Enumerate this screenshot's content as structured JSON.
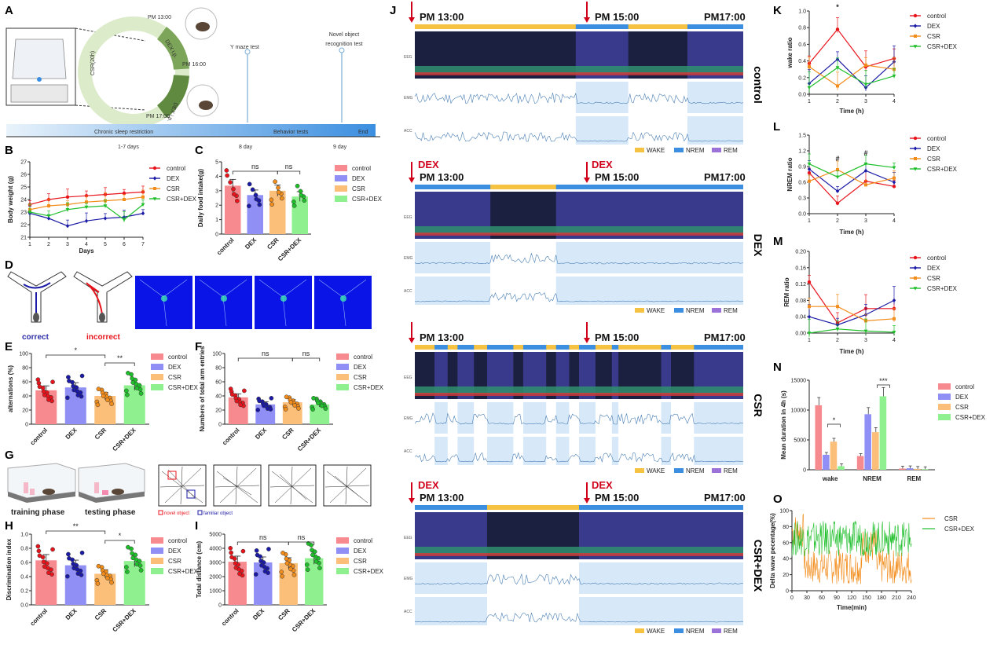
{
  "panel_labels": {
    "A": "A",
    "B": "B",
    "C": "C",
    "D": "D",
    "E": "E",
    "F": "F",
    "G": "G",
    "H": "H",
    "I": "I",
    "J": "J",
    "K": "K",
    "L": "L",
    "M": "M",
    "N": "N",
    "O": "O"
  },
  "colors": {
    "control": "#e8141c",
    "dex": "#1a1aa6",
    "csr": "#f28c1a",
    "csrdex": "#1fbf2b",
    "bar_control": "#f78a8e",
    "bar_dex": "#8f8ff5",
    "bar_csr": "#fbbf7a",
    "bar_csrdex": "#8ef08e",
    "wake": "#f5c242",
    "nrem": "#3b8ee0",
    "rem": "#9a72d8"
  },
  "panelA": {
    "csr_label": "CSR(20h)",
    "times": {
      "t1": "PM 13:00",
      "t2": "PM 16:00",
      "t3": "PM 17:00"
    },
    "dex1": "DEX i.p.",
    "dex2": "DEX i.p.",
    "y_maze": "Y maze test",
    "nor": "Novel object\nrecognition  test",
    "timeline": {
      "csr": "Chronic sleep restriction",
      "behavior": "Behavior tests",
      "end": "End",
      "d1": "1-7 days",
      "d2": "8 day",
      "d3": "9  day"
    }
  },
  "legend4": [
    "control",
    "DEX",
    "CSR",
    "CSR+DEX"
  ],
  "groups": [
    "control",
    "DEX",
    "CSR",
    "CSR+DEX"
  ],
  "panelD": {
    "correct": "correct",
    "incorrect": "incorrect"
  },
  "panelG": {
    "training": "training   phase",
    "testing": "testing  phase",
    "novel": "novel object",
    "familiar": "familiar object"
  },
  "panelJ": {
    "t1": "PM 13:00",
    "t2": "PM 15:00",
    "t3": "PM17:00",
    "dex": "DEX",
    "groups": [
      "control",
      "DEX",
      "CSR",
      "CSR+DEX"
    ],
    "legend": [
      "WAKE",
      "NREM",
      "REM"
    ],
    "channels": {
      "eeg": "EEG",
      "emg": "EMG",
      "acc": "ACC"
    }
  },
  "chart_data": [
    {
      "panel": "B",
      "type": "line",
      "xlabel": "Days",
      "ylabel": "Body weight (g)",
      "x": [
        1,
        2,
        3,
        4,
        5,
        6,
        7
      ],
      "ylim": [
        21,
        27
      ],
      "yticks": [
        21,
        22,
        23,
        24,
        25,
        26,
        27
      ],
      "series": [
        {
          "name": "control",
          "values": [
            23.6,
            24.0,
            24.2,
            24.3,
            24.4,
            24.5,
            24.6
          ]
        },
        {
          "name": "DEX",
          "values": [
            22.9,
            22.5,
            21.9,
            22.3,
            22.5,
            22.6,
            22.9
          ]
        },
        {
          "name": "CSR",
          "values": [
            23.2,
            23.5,
            23.6,
            23.8,
            23.9,
            24.0,
            24.2
          ]
        },
        {
          "name": "CSR+DEX",
          "values": [
            23.0,
            22.7,
            23.2,
            23.4,
            23.5,
            22.4,
            23.6
          ]
        }
      ]
    },
    {
      "panel": "C",
      "type": "bar",
      "ylabel": "Daily food intake(g)",
      "categories": [
        "control",
        "DEX",
        "CSR",
        "CSR+DEX"
      ],
      "values": [
        3.35,
        2.7,
        3.0,
        2.6
      ],
      "ylim": [
        0,
        5
      ],
      "yticks": [
        0,
        1,
        2,
        3,
        4,
        5
      ],
      "sig": [
        "ns",
        "ns"
      ]
    },
    {
      "panel": "E",
      "type": "bar",
      "ylabel": "alternations (%)",
      "categories": [
        "control",
        "DEX",
        "CSR",
        "CSR+DEX"
      ],
      "values": [
        48,
        52,
        40,
        55
      ],
      "ylim": [
        0,
        100
      ],
      "yticks": [
        0,
        20,
        40,
        60,
        80,
        100
      ],
      "sig": [
        "*",
        "**"
      ]
    },
    {
      "panel": "F",
      "type": "bar",
      "ylabel": "Numbers of total arm entries",
      "categories": [
        "control",
        "DEX",
        "CSR",
        "CSR+DEX"
      ],
      "values": [
        38,
        28,
        31,
        28
      ],
      "ylim": [
        0,
        100
      ],
      "yticks": [
        0,
        20,
        40,
        60,
        80,
        100
      ],
      "sig": [
        "ns",
        "ns"
      ]
    },
    {
      "panel": "H",
      "type": "bar",
      "ylabel": "Discrimination index",
      "categories": [
        "control",
        "DEX",
        "CSR",
        "CSR+DEX"
      ],
      "values": [
        0.63,
        0.56,
        0.44,
        0.62
      ],
      "ylim": [
        0,
        1.0
      ],
      "yticks": [
        "0.0",
        "0.2",
        "0.4",
        "0.6",
        "0.8",
        "1.0"
      ],
      "sig": [
        "**",
        "*"
      ]
    },
    {
      "panel": "I",
      "type": "bar",
      "ylabel": "Total distance (cm)",
      "categories": [
        "control",
        "DEX",
        "CSR",
        "CSR+DEX"
      ],
      "values": [
        3050,
        3000,
        2950,
        3300
      ],
      "ylim": [
        0,
        5000
      ],
      "yticks": [
        0,
        1000,
        2000,
        3000,
        4000,
        5000
      ],
      "sig": [
        "ns",
        "ns"
      ]
    },
    {
      "panel": "K",
      "type": "line",
      "xlabel": "Time (h)",
      "ylabel": "wake ratio",
      "x": [
        1,
        2,
        3,
        4
      ],
      "ylim": [
        0,
        1.0
      ],
      "yticks": [
        "0.0",
        "0.2",
        "0.4",
        "0.6",
        "0.8",
        "1.0"
      ],
      "sig": [
        "*"
      ],
      "series": [
        {
          "name": "control",
          "values": [
            0.37,
            0.78,
            0.33,
            0.43
          ]
        },
        {
          "name": "DEX",
          "values": [
            0.13,
            0.42,
            0.08,
            0.39
          ]
        },
        {
          "name": "CSR",
          "values": [
            0.33,
            0.1,
            0.35,
            0.3
          ]
        },
        {
          "name": "CSR+DEX",
          "values": [
            0.08,
            0.32,
            0.12,
            0.22
          ]
        }
      ]
    },
    {
      "panel": "L",
      "type": "line",
      "xlabel": "Time (h)",
      "ylabel": "NREM ratio",
      "x": [
        1,
        2,
        3,
        4
      ],
      "ylim": [
        0,
        1.5
      ],
      "yticks": [
        "0.0",
        "0.3",
        "0.6",
        "0.9",
        "1.2",
        "1.5"
      ],
      "sig": [
        "#",
        "#"
      ],
      "series": [
        {
          "name": "control",
          "values": [
            0.78,
            0.2,
            0.62,
            0.52
          ]
        },
        {
          "name": "DEX",
          "values": [
            0.85,
            0.43,
            0.82,
            0.6
          ]
        },
        {
          "name": "CSR",
          "values": [
            0.62,
            0.84,
            0.55,
            0.68
          ]
        },
        {
          "name": "CSR+DEX",
          "values": [
            0.95,
            0.7,
            0.95,
            0.88
          ]
        }
      ]
    },
    {
      "panel": "M",
      "type": "line",
      "xlabel": "Time (h)",
      "ylabel": "REM ratio",
      "x": [
        1,
        2,
        3,
        4
      ],
      "ylim": [
        0,
        0.2
      ],
      "yticks": [
        "0.00",
        "0.04",
        "0.08",
        "0.12",
        "0.16",
        "0.20"
      ],
      "series": [
        {
          "name": "control",
          "values": [
            0.125,
            0.025,
            0.06,
            0.06
          ]
        },
        {
          "name": "DEX",
          "values": [
            0.04,
            0.02,
            0.045,
            0.08
          ]
        },
        {
          "name": "CSR",
          "values": [
            0.065,
            0.065,
            0.03,
            0.035
          ]
        },
        {
          "name": "CSR+DEX",
          "values": [
            0.0,
            0.01,
            0.005,
            0.002
          ]
        }
      ]
    },
    {
      "panel": "N",
      "type": "bar",
      "ylabel": "Mean duration in 4h (s)",
      "categories": [
        "wake",
        "NREM",
        "REM"
      ],
      "ylim": [
        0,
        15000
      ],
      "yticks": [
        0,
        5000,
        10000,
        15000
      ],
      "sig": [
        "*",
        "***"
      ],
      "series": [
        {
          "name": "control",
          "values": [
            10800,
            2300,
            200
          ]
        },
        {
          "name": "DEX",
          "values": [
            2500,
            9300,
            250
          ]
        },
        {
          "name": "CSR",
          "values": [
            4700,
            6300,
            150
          ]
        },
        {
          "name": "CSR+DEX",
          "values": [
            600,
            12300,
            100
          ]
        }
      ]
    },
    {
      "panel": "O",
      "type": "line",
      "xlabel": "Time(min)",
      "ylabel": "Delta wave pecentage(%)",
      "xlim": [
        0,
        240
      ],
      "ylim": [
        0,
        100
      ],
      "xticks": [
        0,
        30,
        60,
        90,
        120,
        150,
        180,
        210,
        240
      ],
      "yticks": [
        0,
        20,
        40,
        60,
        80,
        100
      ],
      "series": [
        {
          "name": "CSR",
          "mean_level": 30
        },
        {
          "name": "CSR+DEX",
          "mean_level": 65
        }
      ]
    }
  ]
}
